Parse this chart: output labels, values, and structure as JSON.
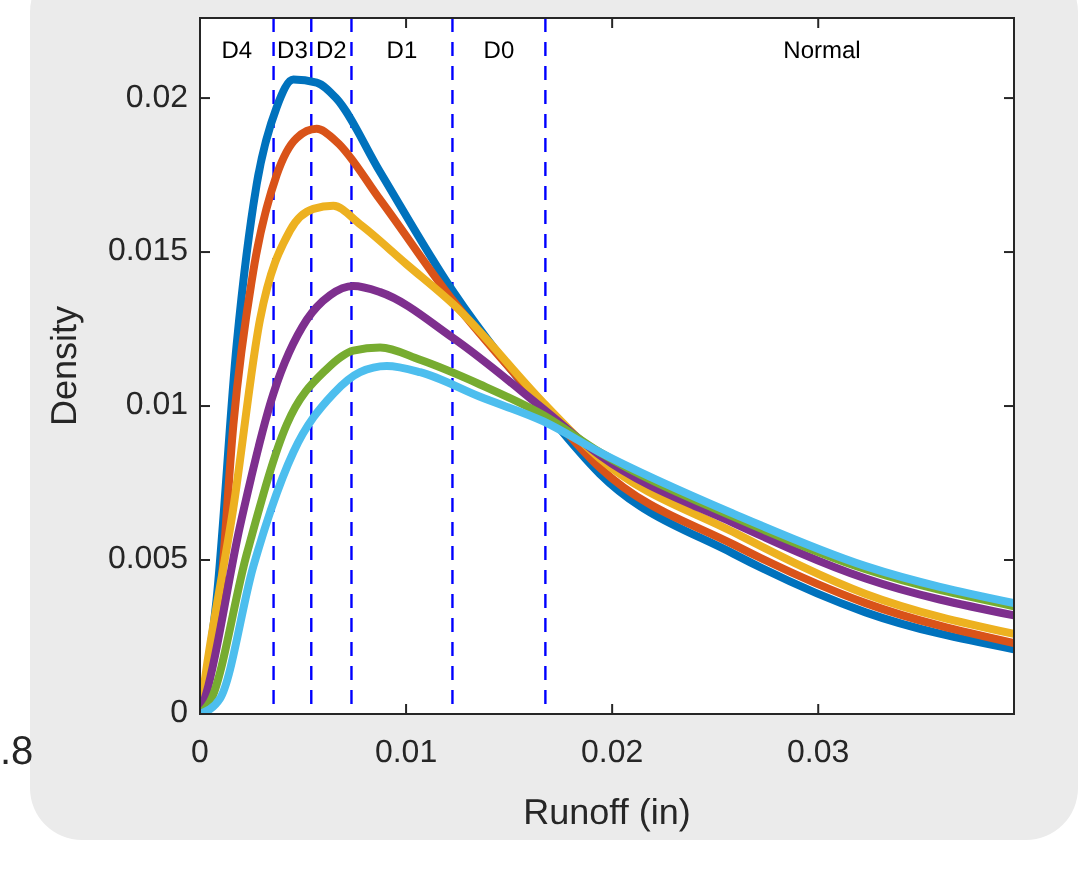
{
  "chart_data": {
    "type": "line",
    "xlabel": "Runoff (in)",
    "ylabel": "Density",
    "xlim": [
      0,
      0.0395
    ],
    "ylim": [
      0,
      0.0226
    ],
    "xticks": [
      0,
      0.01,
      0.02,
      0.03
    ],
    "yticks": [
      0,
      0.005,
      0.01,
      0.015,
      0.02
    ],
    "grid": false,
    "marker": "none",
    "line_style": "solid",
    "series": [
      {
        "color": "#0072bd",
        "x": [
          0,
          0.0008,
          0.00178,
          0.00275,
          0.00372,
          0.00453,
          0.00566,
          0.0066,
          0.00874,
          0.0123,
          0.01667,
          0.0194,
          0.0259,
          0.0323,
          0.0395
        ],
        "values": [
          0,
          0.0037,
          0.012,
          0.0172,
          0.0197,
          0.0206,
          0.0205,
          0.02,
          0.0176,
          0.0137,
          0.0099,
          0.0078,
          0.0052,
          0.0033,
          0.0021
        ]
      },
      {
        "color": "#d95319",
        "x": [
          0,
          0.00097,
          0.00162,
          0.00259,
          0.00372,
          0.00469,
          0.00566,
          0.0066,
          0.00874,
          0.0123,
          0.01667,
          0.0194,
          0.0259,
          0.0323,
          0.0395
        ],
        "values": [
          0,
          0.0037,
          0.0094,
          0.0144,
          0.0175,
          0.0187,
          0.019,
          0.0186,
          0.0167,
          0.0134,
          0.01,
          0.008,
          0.0055,
          0.0036,
          0.0023
        ]
      },
      {
        "color": "#edb120",
        "x": [
          0,
          0.00032,
          0.00162,
          0.00291,
          0.00437,
          0.0055,
          0.00647,
          0.00777,
          0.01003,
          0.0123,
          0.01667,
          0.0194,
          0.0259,
          0.0323,
          0.0395
        ],
        "values": [
          0,
          0.0015,
          0.0067,
          0.0128,
          0.0157,
          0.0164,
          0.0165,
          0.0159,
          0.0146,
          0.0133,
          0.0101,
          0.0083,
          0.0059,
          0.0039,
          0.0026
        ]
      },
      {
        "color": "#7e2f8e",
        "x": [
          0,
          0.00032,
          0.00194,
          0.00356,
          0.00518,
          0.00631,
          0.00744,
          0.00874,
          0.0123,
          0.01667,
          0.0194,
          0.0259,
          0.0323,
          0.0395
        ],
        "values": [
          0,
          0.0007,
          0.0061,
          0.0104,
          0.0128,
          0.0136,
          0.0139,
          0.0137,
          0.0122,
          0.0099,
          0.0084,
          0.0062,
          0.0044,
          0.0032
        ]
      },
      {
        "color": "#77ac30",
        "x": [
          0,
          0.00049,
          0.00227,
          0.00421,
          0.00615,
          0.00744,
          0.00874,
          0.01068,
          0.01359,
          0.01667,
          0.0194,
          0.0259,
          0.0323,
          0.0395
        ],
        "values": [
          0,
          0.0004,
          0.0052,
          0.0094,
          0.0112,
          0.0118,
          0.0119,
          0.0115,
          0.0107,
          0.0097,
          0.0085,
          0.0064,
          0.0047,
          0.0035
        ]
      },
      {
        "color": "#4dbeee",
        "x": [
          0,
          0.00097,
          0.00259,
          0.00453,
          0.00647,
          0.00777,
          0.00906,
          0.01068,
          0.01359,
          0.01667,
          0.0194,
          0.0259,
          0.0323,
          0.0395
        ],
        "values": [
          0,
          0.0005,
          0.0048,
          0.0085,
          0.0104,
          0.0111,
          0.0113,
          0.0111,
          0.0103,
          0.0095,
          0.0085,
          0.0065,
          0.0048,
          0.0036
        ]
      }
    ],
    "ref_lines": [
      {
        "axis": "x",
        "value": 0.00357,
        "color": "#0000ff",
        "line_style": "dashed"
      },
      {
        "axis": "x",
        "value": 0.0054,
        "color": "#0000ff",
        "line_style": "dashed"
      },
      {
        "axis": "x",
        "value": 0.00735,
        "color": "#0000ff",
        "line_style": "dashed"
      },
      {
        "axis": "x",
        "value": 0.01225,
        "color": "#0000ff",
        "line_style": "dashed"
      },
      {
        "axis": "x",
        "value": 0.01676,
        "color": "#0000ff",
        "line_style": "dashed"
      }
    ],
    "annotations": [
      "D4",
      "D3",
      "D2",
      "D1",
      "D0",
      "Normal",
      ".8"
    ]
  }
}
